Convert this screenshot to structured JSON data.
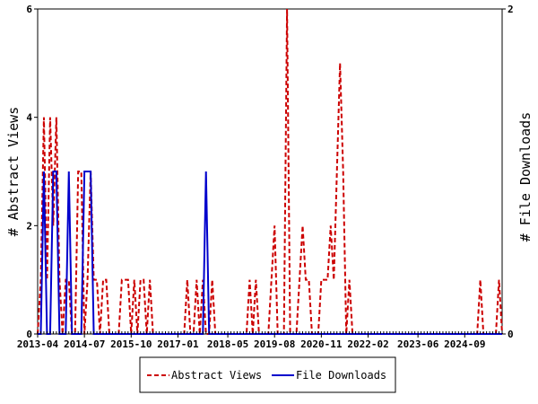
{
  "chart_data": {
    "type": "line",
    "title": "",
    "xlabel": "",
    "ylabel": "# Abstract Views",
    "y2label": "# File Downloads",
    "x_tick_labels": [
      "2013-04",
      "2014-07",
      "2015-10",
      "2017-01",
      "2018-05",
      "2019-08",
      "2020-11",
      "2022-02",
      "2023-06",
      "2024-09"
    ],
    "x_range": [
      "2013-04",
      "2025-09"
    ],
    "ylim": [
      0,
      6
    ],
    "y_ticks": [
      0,
      2,
      4,
      6
    ],
    "y2lim": [
      0,
      2
    ],
    "y2_ticks": [
      0,
      2
    ],
    "grid": false,
    "legend_position": "bottom-center",
    "series": [
      {
        "name": "Abstract Views",
        "axis": "left",
        "color": "#cc0000",
        "style": "dashed",
        "values": [
          [
            "2013-04",
            0
          ],
          [
            "2013-05",
            1
          ],
          [
            "2013-06",
            4
          ],
          [
            "2013-07",
            1
          ],
          [
            "2013-08",
            4
          ],
          [
            "2013-09",
            2
          ],
          [
            "2013-10",
            4
          ],
          [
            "2013-11",
            1
          ],
          [
            "2013-12",
            0
          ],
          [
            "2014-01",
            1
          ],
          [
            "2014-02",
            1
          ],
          [
            "2014-03",
            0
          ],
          [
            "2014-04",
            0
          ],
          [
            "2014-05",
            3
          ],
          [
            "2014-06",
            3
          ],
          [
            "2014-07",
            0
          ],
          [
            "2014-08",
            1
          ],
          [
            "2014-09",
            3
          ],
          [
            "2014-10",
            1
          ],
          [
            "2014-11",
            1
          ],
          [
            "2014-12",
            0
          ],
          [
            "2015-01",
            1
          ],
          [
            "2015-02",
            1
          ],
          [
            "2015-03",
            0
          ],
          [
            "2015-04",
            0
          ],
          [
            "2015-05",
            0
          ],
          [
            "2015-06",
            0
          ],
          [
            "2015-07",
            1
          ],
          [
            "2015-08",
            1
          ],
          [
            "2015-09",
            1
          ],
          [
            "2015-10",
            0
          ],
          [
            "2015-11",
            1
          ],
          [
            "2015-12",
            0
          ],
          [
            "2016-01",
            1
          ],
          [
            "2016-02",
            1
          ],
          [
            "2016-03",
            0
          ],
          [
            "2016-04",
            1
          ],
          [
            "2016-05",
            0
          ],
          [
            "2016-06",
            0
          ],
          [
            "2016-07",
            0
          ],
          [
            "2016-08",
            0
          ],
          [
            "2016-09",
            0
          ],
          [
            "2016-10",
            0
          ],
          [
            "2016-11",
            0
          ],
          [
            "2016-12",
            0
          ],
          [
            "2017-01",
            0
          ],
          [
            "2017-02",
            0
          ],
          [
            "2017-03",
            0
          ],
          [
            "2017-04",
            1
          ],
          [
            "2017-05",
            0
          ],
          [
            "2017-06",
            0
          ],
          [
            "2017-07",
            1
          ],
          [
            "2017-08",
            0
          ],
          [
            "2017-09",
            1
          ],
          [
            "2017-10",
            0
          ],
          [
            "2017-11",
            0
          ],
          [
            "2017-12",
            1
          ],
          [
            "2018-01",
            0
          ],
          [
            "2018-02",
            0
          ],
          [
            "2018-03",
            0
          ],
          [
            "2018-04",
            0
          ],
          [
            "2018-05",
            0
          ],
          [
            "2018-06",
            0
          ],
          [
            "2018-07",
            0
          ],
          [
            "2018-08",
            0
          ],
          [
            "2018-09",
            0
          ],
          [
            "2018-10",
            0
          ],
          [
            "2018-11",
            0
          ],
          [
            "2018-12",
            1
          ],
          [
            "2019-01",
            0
          ],
          [
            "2019-02",
            1
          ],
          [
            "2019-03",
            0
          ],
          [
            "2019-04",
            0
          ],
          [
            "2019-05",
            0
          ],
          [
            "2019-06",
            0
          ],
          [
            "2019-07",
            1
          ],
          [
            "2019-08",
            2
          ],
          [
            "2019-09",
            0
          ],
          [
            "2019-10",
            0
          ],
          [
            "2019-11",
            0
          ],
          [
            "2019-12",
            6
          ],
          [
            "2020-01",
            0
          ],
          [
            "2020-02",
            0
          ],
          [
            "2020-03",
            0
          ],
          [
            "2020-04",
            1
          ],
          [
            "2020-05",
            2
          ],
          [
            "2020-06",
            1
          ],
          [
            "2020-07",
            1
          ],
          [
            "2020-08",
            0
          ],
          [
            "2020-09",
            0
          ],
          [
            "2020-10",
            0
          ],
          [
            "2020-11",
            1
          ],
          [
            "2020-12",
            1
          ],
          [
            "2021-01",
            1
          ],
          [
            "2021-02",
            2
          ],
          [
            "2021-03",
            1
          ],
          [
            "2021-04",
            3
          ],
          [
            "2021-05",
            5
          ],
          [
            "2021-06",
            3
          ],
          [
            "2021-07",
            0
          ],
          [
            "2021-08",
            1
          ],
          [
            "2021-09",
            0
          ],
          [
            "2021-10",
            0
          ],
          [
            "2021-11",
            0
          ],
          [
            "2021-12",
            0
          ],
          [
            "2022-01",
            0
          ],
          [
            "2022-02",
            0
          ],
          [
            "2022-03",
            0
          ],
          [
            "2022-04",
            0
          ],
          [
            "2022-05",
            0
          ],
          [
            "2022-06",
            0
          ],
          [
            "2022-07",
            0
          ],
          [
            "2022-08",
            0
          ],
          [
            "2022-09",
            0
          ],
          [
            "2022-10",
            0
          ],
          [
            "2022-11",
            0
          ],
          [
            "2022-12",
            0
          ],
          [
            "2023-01",
            0
          ],
          [
            "2023-02",
            0
          ],
          [
            "2023-03",
            0
          ],
          [
            "2023-04",
            0
          ],
          [
            "2023-05",
            0
          ],
          [
            "2023-06",
            0
          ],
          [
            "2023-07",
            0
          ],
          [
            "2023-08",
            0
          ],
          [
            "2023-09",
            0
          ],
          [
            "2023-10",
            0
          ],
          [
            "2023-11",
            0
          ],
          [
            "2023-12",
            0
          ],
          [
            "2024-01",
            0
          ],
          [
            "2024-02",
            0
          ],
          [
            "2024-03",
            0
          ],
          [
            "2024-04",
            0
          ],
          [
            "2024-05",
            0
          ],
          [
            "2024-06",
            0
          ],
          [
            "2024-07",
            0
          ],
          [
            "2024-08",
            0
          ],
          [
            "2024-09",
            0
          ],
          [
            "2024-10",
            0
          ],
          [
            "2024-11",
            0
          ],
          [
            "2024-12",
            0
          ],
          [
            "2025-01",
            0
          ],
          [
            "2025-02",
            1
          ],
          [
            "2025-03",
            0
          ],
          [
            "2025-04",
            0
          ],
          [
            "2025-05",
            0
          ],
          [
            "2025-06",
            0
          ],
          [
            "2025-07",
            0
          ],
          [
            "2025-08",
            1
          ],
          [
            "2025-09",
            0
          ]
        ]
      },
      {
        "name": "File Downloads",
        "axis": "right",
        "color": "#0000cc",
        "style": "solid",
        "values": [
          [
            "2013-04",
            0
          ],
          [
            "2013-05",
            0
          ],
          [
            "2013-06",
            1
          ],
          [
            "2013-07",
            0
          ],
          [
            "2013-08",
            0
          ],
          [
            "2013-09",
            1
          ],
          [
            "2013-10",
            1
          ],
          [
            "2013-11",
            0
          ],
          [
            "2013-12",
            0
          ],
          [
            "2014-01",
            0
          ],
          [
            "2014-02",
            1
          ],
          [
            "2014-03",
            0
          ],
          [
            "2014-04",
            0
          ],
          [
            "2014-05",
            0
          ],
          [
            "2014-06",
            0
          ],
          [
            "2014-07",
            1
          ],
          [
            "2014-08",
            1
          ],
          [
            "2014-09",
            1
          ],
          [
            "2014-10",
            0
          ],
          [
            "2014-11",
            0
          ],
          [
            "2014-12",
            0
          ],
          [
            "2015-01",
            0
          ],
          [
            "2015-02",
            0
          ],
          [
            "2015-03",
            0
          ],
          [
            "2015-04",
            0
          ],
          [
            "2015-05",
            0
          ],
          [
            "2015-06",
            0
          ],
          [
            "2015-07",
            0
          ],
          [
            "2015-08",
            0
          ],
          [
            "2015-09",
            0
          ],
          [
            "2015-10",
            0
          ],
          [
            "2015-11",
            0
          ],
          [
            "2015-12",
            0
          ],
          [
            "2016-01",
            0
          ],
          [
            "2016-02",
            0
          ],
          [
            "2016-03",
            0
          ],
          [
            "2016-04",
            0
          ],
          [
            "2016-05",
            0
          ],
          [
            "2016-06",
            0
          ],
          [
            "2016-07",
            0
          ],
          [
            "2016-08",
            0
          ],
          [
            "2016-09",
            0
          ],
          [
            "2016-10",
            0
          ],
          [
            "2016-11",
            0
          ],
          [
            "2016-12",
            0
          ],
          [
            "2017-01",
            0
          ],
          [
            "2017-02",
            0
          ],
          [
            "2017-03",
            0
          ],
          [
            "2017-04",
            0
          ],
          [
            "2017-05",
            0
          ],
          [
            "2017-06",
            0
          ],
          [
            "2017-07",
            0
          ],
          [
            "2017-08",
            0
          ],
          [
            "2017-09",
            0
          ],
          [
            "2017-10",
            1
          ],
          [
            "2017-11",
            0
          ],
          [
            "2017-12",
            0
          ],
          [
            "2018-01",
            0
          ],
          [
            "2018-02",
            0
          ],
          [
            "2018-03",
            0
          ],
          [
            "2018-04",
            0
          ],
          [
            "2018-05",
            0
          ],
          [
            "2018-06",
            0
          ],
          [
            "2018-07",
            0
          ],
          [
            "2018-08",
            0
          ],
          [
            "2018-09",
            0
          ],
          [
            "2018-10",
            0
          ],
          [
            "2018-11",
            0
          ],
          [
            "2018-12",
            0
          ],
          [
            "2019-01",
            0
          ],
          [
            "2019-02",
            0
          ],
          [
            "2019-03",
            0
          ],
          [
            "2019-04",
            0
          ],
          [
            "2019-05",
            0
          ],
          [
            "2019-06",
            0
          ],
          [
            "2019-07",
            0
          ],
          [
            "2019-08",
            0
          ],
          [
            "2019-09",
            0
          ],
          [
            "2019-10",
            0
          ],
          [
            "2019-11",
            0
          ],
          [
            "2019-12",
            0
          ],
          [
            "2020-01",
            0
          ],
          [
            "2020-02",
            0
          ],
          [
            "2020-03",
            0
          ],
          [
            "2020-04",
            0
          ],
          [
            "2020-05",
            0
          ],
          [
            "2020-06",
            0
          ],
          [
            "2020-07",
            0
          ],
          [
            "2020-08",
            0
          ],
          [
            "2020-09",
            0
          ],
          [
            "2020-10",
            0
          ],
          [
            "2020-11",
            0
          ],
          [
            "2020-12",
            0
          ],
          [
            "2021-01",
            0
          ],
          [
            "2021-02",
            0
          ],
          [
            "2021-03",
            0
          ],
          [
            "2021-04",
            0
          ],
          [
            "2021-05",
            0
          ],
          [
            "2021-06",
            0
          ],
          [
            "2021-07",
            0
          ],
          [
            "2021-08",
            0
          ],
          [
            "2021-09",
            0
          ],
          [
            "2021-10",
            0
          ],
          [
            "2021-11",
            0
          ],
          [
            "2021-12",
            0
          ],
          [
            "2022-01",
            0
          ],
          [
            "2022-02",
            0
          ],
          [
            "2022-03",
            0
          ],
          [
            "2022-04",
            0
          ],
          [
            "2022-05",
            0
          ],
          [
            "2022-06",
            0
          ],
          [
            "2022-07",
            0
          ],
          [
            "2022-08",
            0
          ],
          [
            "2022-09",
            0
          ],
          [
            "2022-10",
            0
          ],
          [
            "2022-11",
            0
          ],
          [
            "2022-12",
            0
          ],
          [
            "2023-01",
            0
          ],
          [
            "2023-02",
            0
          ],
          [
            "2023-03",
            0
          ],
          [
            "2023-04",
            0
          ],
          [
            "2023-05",
            0
          ],
          [
            "2023-06",
            0
          ],
          [
            "2023-07",
            0
          ],
          [
            "2023-08",
            0
          ],
          [
            "2023-09",
            0
          ],
          [
            "2023-10",
            0
          ],
          [
            "2023-11",
            0
          ],
          [
            "2023-12",
            0
          ],
          [
            "2024-01",
            0
          ],
          [
            "2024-02",
            0
          ],
          [
            "2024-03",
            0
          ],
          [
            "2024-04",
            0
          ],
          [
            "2024-05",
            0
          ],
          [
            "2024-06",
            0
          ],
          [
            "2024-07",
            0
          ],
          [
            "2024-08",
            0
          ],
          [
            "2024-09",
            0
          ],
          [
            "2024-10",
            0
          ],
          [
            "2024-11",
            0
          ],
          [
            "2024-12",
            0
          ],
          [
            "2025-01",
            0
          ],
          [
            "2025-02",
            0
          ],
          [
            "2025-03",
            0
          ],
          [
            "2025-04",
            0
          ],
          [
            "2025-05",
            0
          ],
          [
            "2025-06",
            0
          ],
          [
            "2025-07",
            0
          ],
          [
            "2025-08",
            0
          ],
          [
            "2025-09",
            0
          ]
        ]
      }
    ]
  }
}
